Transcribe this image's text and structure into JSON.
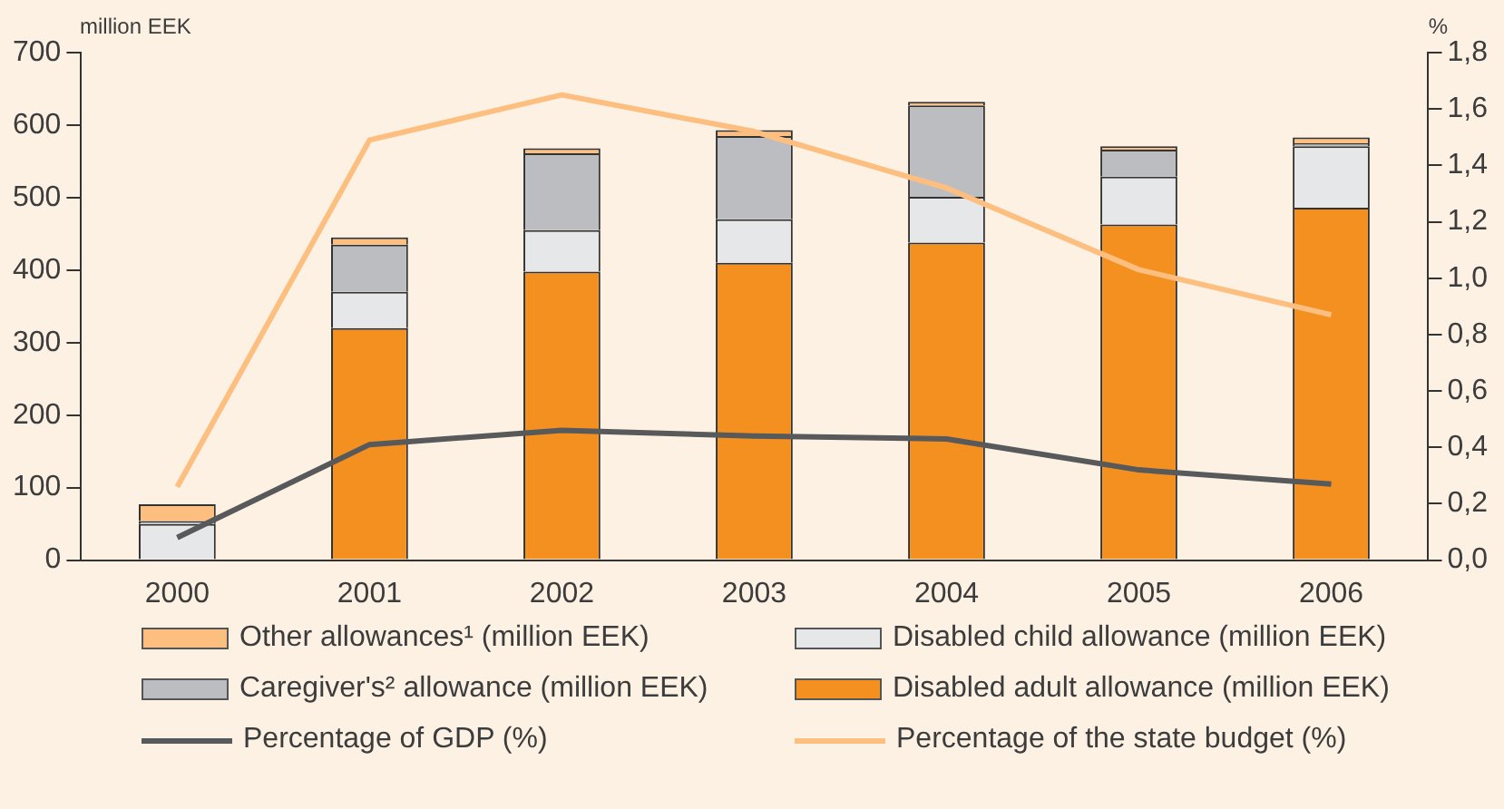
{
  "chart_data": {
    "type": "bar",
    "stacked": true,
    "ylabel": "million EEK",
    "y2label": "%",
    "categories": [
      "2000",
      "2001",
      "2002",
      "2003",
      "2004",
      "2005",
      "2006"
    ],
    "series": [
      {
        "name": "Disabled adult allowance (million EEK)",
        "color": "#f39020",
        "values": [
          0,
          320,
          398,
          410,
          438,
          463,
          486
        ]
      },
      {
        "name": "Disabled child allowance (million EEK)",
        "color": "#e6e7e8",
        "values": [
          50,
          50,
          57,
          60,
          63,
          66,
          85
        ]
      },
      {
        "name": "Caregiver's² allowance (million EEK)",
        "color": "#bcbdc0",
        "values": [
          4,
          65,
          106,
          115,
          126,
          37,
          4
        ]
      },
      {
        "name": "Other allowances¹ (million EEK)",
        "color": "#fdbf80",
        "values": [
          23,
          10,
          7,
          8,
          5,
          5,
          8
        ]
      },
      {
        "name": "Percentage of GDP (%)",
        "type": "line",
        "axis": "y2",
        "color": "#58595b",
        "values": [
          0.08,
          0.41,
          0.46,
          0.44,
          0.43,
          0.32,
          0.27
        ]
      },
      {
        "name": "Percentage of the state budget (%)",
        "type": "line",
        "axis": "y2",
        "color": "#fdbf80",
        "values": [
          0.26,
          1.49,
          1.65,
          1.52,
          1.32,
          1.03,
          0.87
        ]
      }
    ],
    "ylim": [
      0,
      700
    ],
    "yticks": [
      0,
      100,
      200,
      300,
      400,
      500,
      600,
      700
    ],
    "y2lim": [
      0,
      1.8
    ],
    "y2ticks": [
      {
        "value": 0,
        "label": "0,0"
      },
      {
        "value": 0.2,
        "label": "0,2"
      },
      {
        "value": 0.4,
        "label": "0,4"
      },
      {
        "value": 0.6,
        "label": "0,6"
      },
      {
        "value": 0.8,
        "label": "0,8"
      },
      {
        "value": 1,
        "label": "1,0"
      },
      {
        "value": 1.2,
        "label": "1,2"
      },
      {
        "value": 1.4,
        "label": "1,4"
      },
      {
        "value": 1.6,
        "label": "1,6"
      },
      {
        "value": 1.8,
        "label": "1,8"
      }
    ],
    "grid": false,
    "legend": "bottom",
    "marker": "none"
  }
}
